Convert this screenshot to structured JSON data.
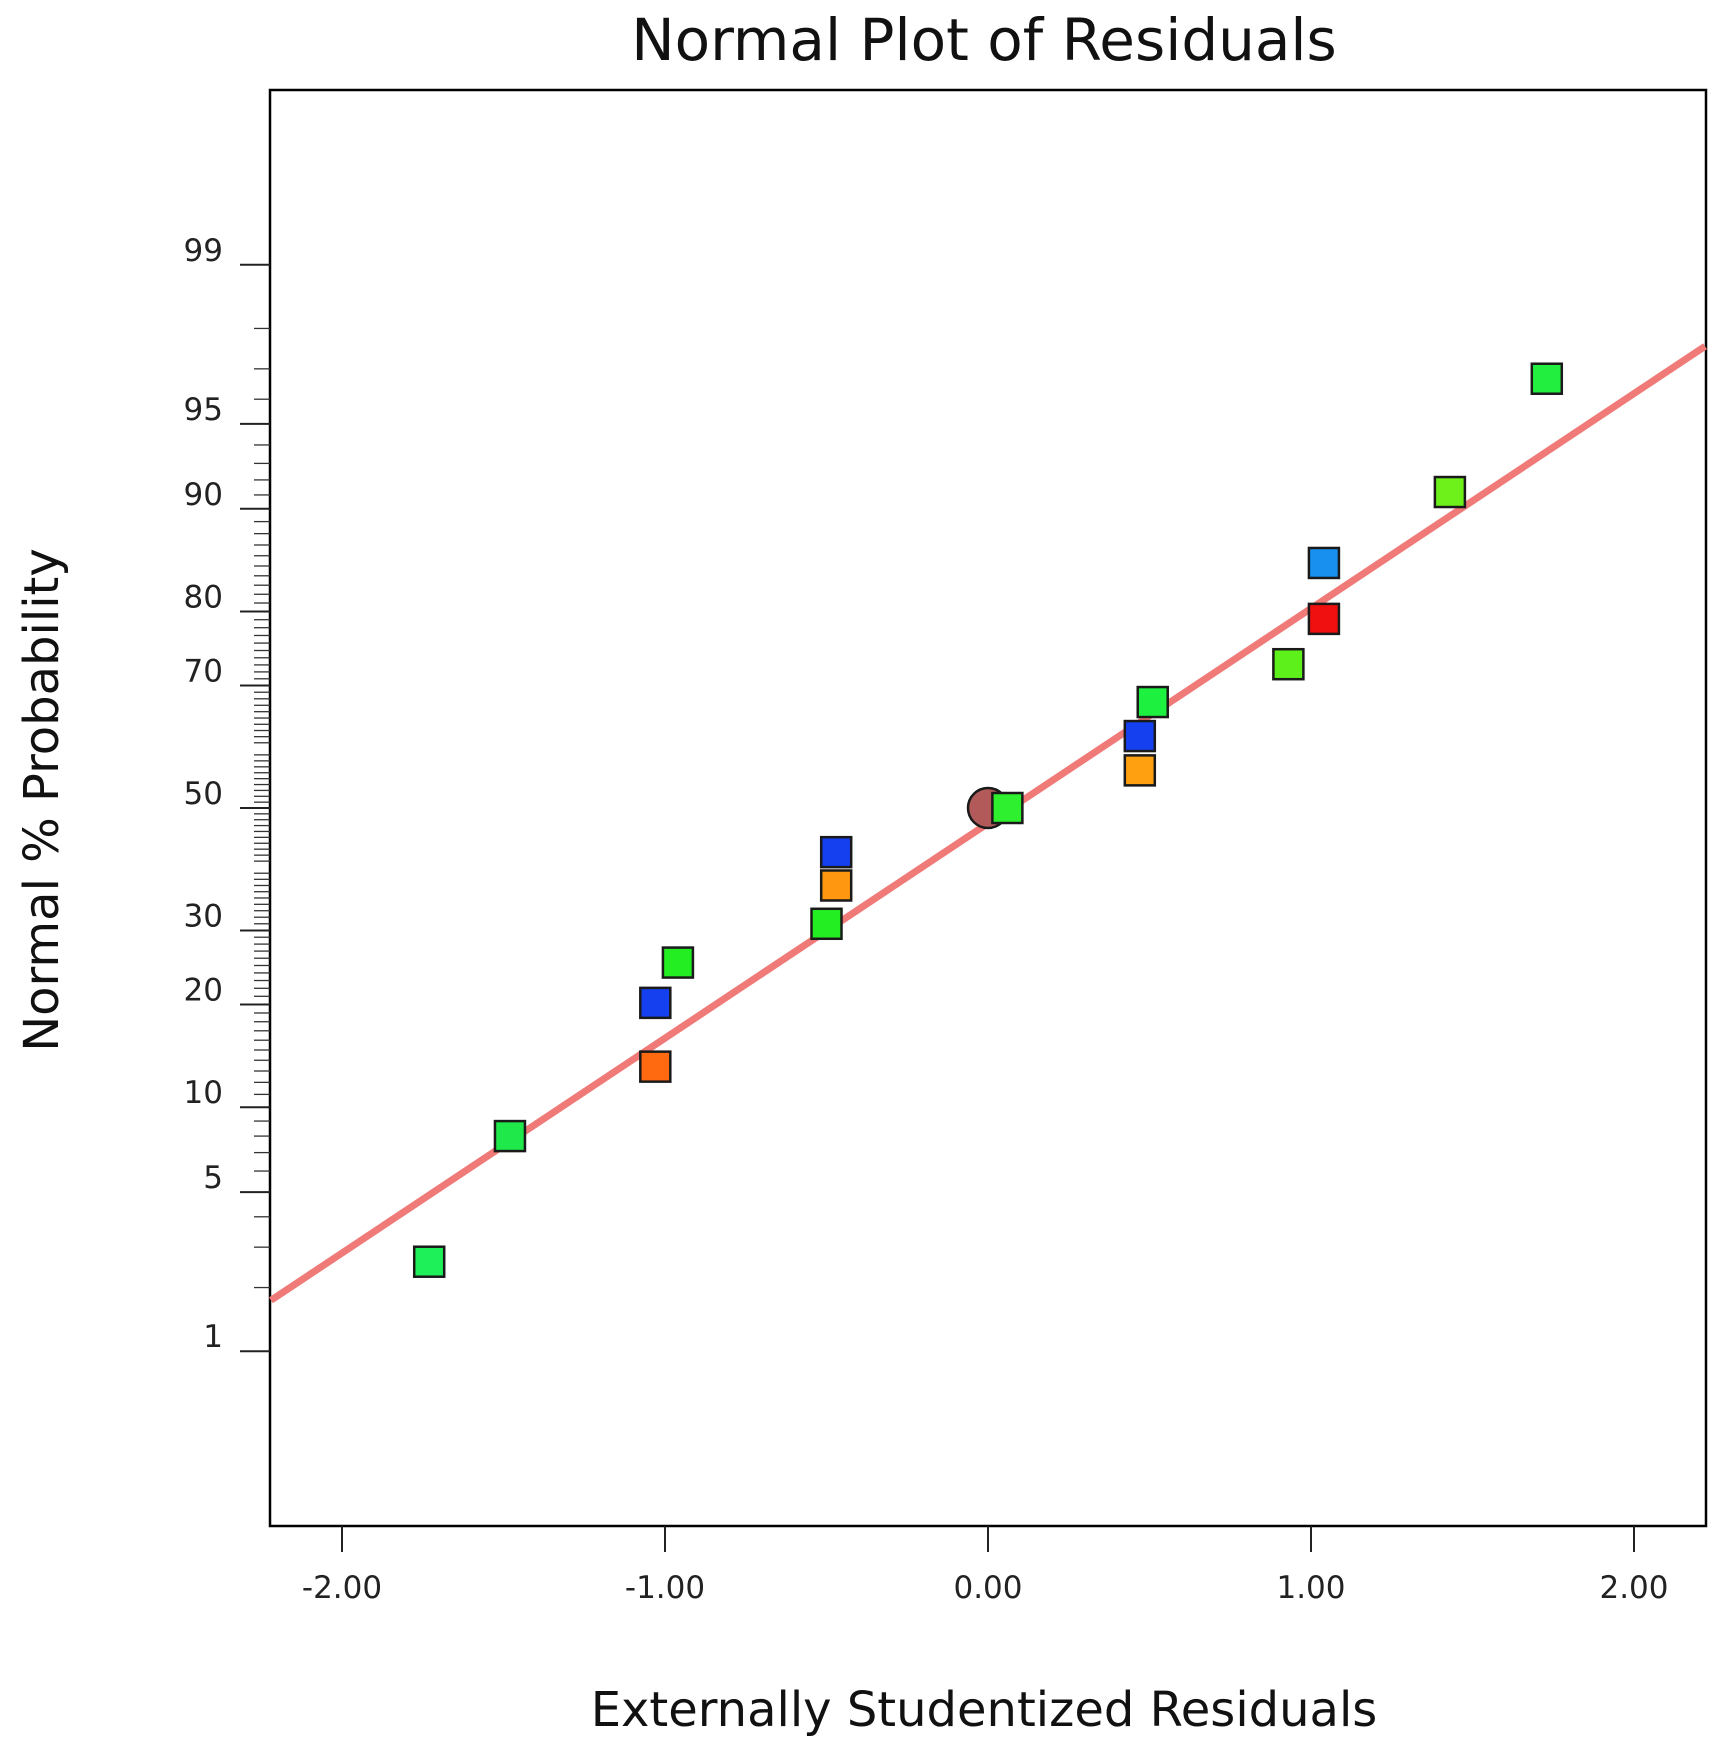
{
  "chart_data": {
    "type": "scatter",
    "title": "Normal Plot of Residuals",
    "xlabel": "Externally Studentized Residuals",
    "ylabel": "Normal % Probability",
    "xlim": [
      -2.22,
      2.22
    ],
    "x_ticks": [
      "-2.00",
      "-1.00",
      "0.00",
      "1.00",
      "2.00"
    ],
    "x_tick_values": [
      -2,
      -1,
      0,
      1,
      2
    ],
    "y_ticks": [
      "1",
      "5",
      "10",
      "20",
      "30",
      "50",
      "70",
      "80",
      "90",
      "95",
      "99"
    ],
    "y_tick_values": [
      1,
      5,
      10,
      20,
      30,
      50,
      70,
      80,
      90,
      95,
      99
    ],
    "y_scale": "normal-probability",
    "fit_line": {
      "color": "#f07a78",
      "x": [
        -2.22,
        2.22
      ],
      "y": [
        1.75,
        97.6
      ]
    },
    "center_marker": {
      "x": 0.0,
      "y": 50,
      "color": "#b25a5a",
      "shape": "circle"
    },
    "points": [
      {
        "x": -1.73,
        "y": 2.6,
        "color": "#1ef05a"
      },
      {
        "x": -1.48,
        "y": 8.0,
        "color": "#1ee84a"
      },
      {
        "x": -1.03,
        "y": 13.4,
        "color": "#ff6a10"
      },
      {
        "x": -1.03,
        "y": 20.2,
        "color": "#1440f0"
      },
      {
        "x": -0.96,
        "y": 25.4,
        "color": "#22ee22"
      },
      {
        "x": -0.5,
        "y": 31.0,
        "color": "#22ee22"
      },
      {
        "x": -0.47,
        "y": 37.0,
        "color": "#ff9810"
      },
      {
        "x": -0.47,
        "y": 42.5,
        "color": "#1440f0"
      },
      {
        "x": 0.06,
        "y": 50.0,
        "color": "#2ef02e"
      },
      {
        "x": 0.47,
        "y": 56.4,
        "color": "#ffa010"
      },
      {
        "x": 0.47,
        "y": 62.1,
        "color": "#1440f0"
      },
      {
        "x": 0.51,
        "y": 67.5,
        "color": "#1ef040"
      },
      {
        "x": 0.93,
        "y": 73.1,
        "color": "#5ef01a"
      },
      {
        "x": 1.04,
        "y": 79.1,
        "color": "#f01010"
      },
      {
        "x": 1.04,
        "y": 85.3,
        "color": "#1890f0"
      },
      {
        "x": 1.43,
        "y": 91.2,
        "color": "#6ef01a"
      },
      {
        "x": 1.73,
        "y": 96.7,
        "color": "#22ee40"
      }
    ]
  }
}
